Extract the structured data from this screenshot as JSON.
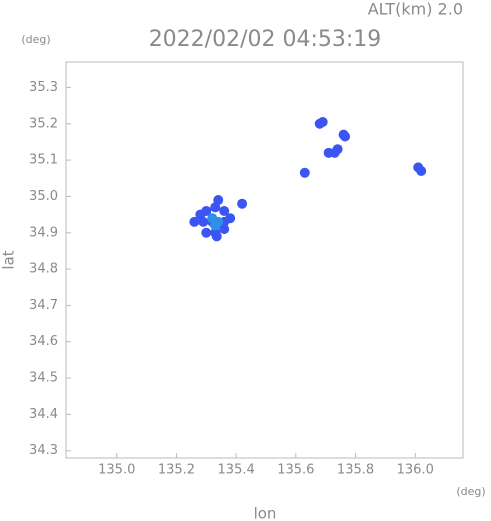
{
  "chart_data": {
    "type": "scatter",
    "annotation": "ALT(km) 2.0",
    "title": "2022/02/02 04:53:19",
    "y_unit": "(deg)",
    "x_unit": "(deg)",
    "xlabel": "lon",
    "ylabel": "lat",
    "xlim": [
      134.83,
      136.16
    ],
    "ylim": [
      34.28,
      35.37
    ],
    "xticks": [
      {
        "value": 135.0,
        "label": "135.0"
      },
      135.2,
      135.4,
      135.6,
      135.8,
      {
        "value": 136.0,
        "label": "136.0"
      }
    ],
    "yticks": [
      34.3,
      34.4,
      34.5,
      34.6,
      34.7,
      34.8,
      34.9,
      {
        "value": 35.0,
        "label": "35.0"
      },
      35.1,
      35.2,
      35.3
    ],
    "series": [
      {
        "color": "#3b55f2",
        "x": [
          135.3,
          135.33,
          135.36,
          135.29,
          135.32,
          135.36,
          135.3,
          135.33,
          135.36,
          135.34,
          135.28,
          135.38,
          135.335,
          135.68,
          135.69,
          135.76,
          135.765,
          135.71,
          135.73,
          135.74,
          135.63,
          136.02,
          136.01,
          135.42,
          135.26
        ],
        "values": [
          34.96,
          34.97,
          34.96,
          34.93,
          34.93,
          34.93,
          34.9,
          34.9,
          34.91,
          34.99,
          34.95,
          34.94,
          34.89,
          35.2,
          35.205,
          35.17,
          35.165,
          35.12,
          35.12,
          35.13,
          35.065,
          35.07,
          35.08,
          34.98,
          34.93
        ]
      },
      {
        "color": "#2e8fe6",
        "x": [
          135.32,
          135.34,
          135.33
        ],
        "values": [
          34.94,
          34.93,
          34.92
        ]
      }
    ]
  }
}
